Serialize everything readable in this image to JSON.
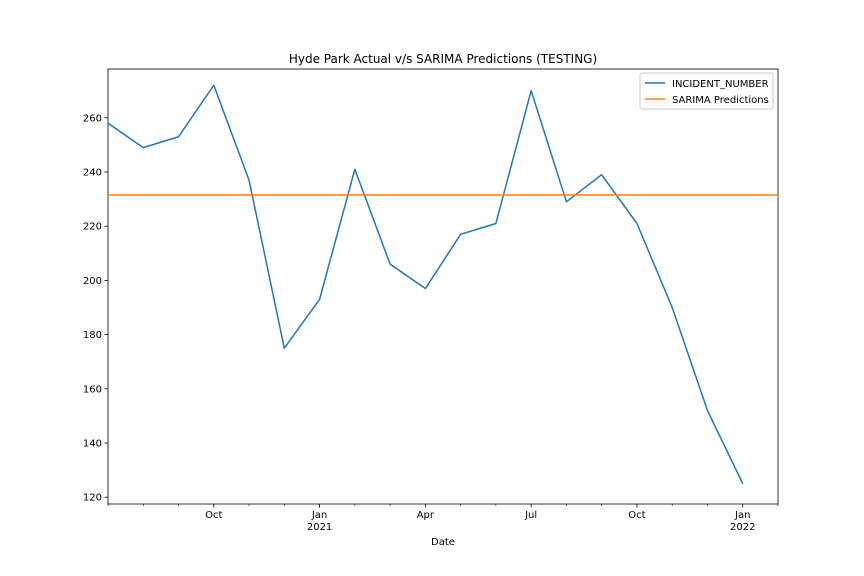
{
  "chart_data": {
    "type": "line",
    "title": "Hyde Park Actual v/s SARIMA Predictions (TESTING)",
    "xlabel": "Date",
    "ylabel": "",
    "x": [
      "2020-07",
      "2020-08",
      "2020-09",
      "2020-10",
      "2020-11",
      "2020-12",
      "2021-01",
      "2021-02",
      "2021-03",
      "2021-04",
      "2021-05",
      "2021-06",
      "2021-07",
      "2021-08",
      "2021-09",
      "2021-10",
      "2021-11",
      "2021-12",
      "2022-01",
      "2022-02"
    ],
    "xlim": [
      "2020-07",
      "2022-02"
    ],
    "ylim": [
      117.5,
      278
    ],
    "yticks": [
      120,
      140,
      160,
      180,
      200,
      220,
      240,
      260
    ],
    "xticks": [
      {
        "date": "2020-10",
        "label": "Oct",
        "sublabel": ""
      },
      {
        "date": "2021-01",
        "label": "Jan",
        "sublabel": "2021"
      },
      {
        "date": "2021-04",
        "label": "Apr",
        "sublabel": ""
      },
      {
        "date": "2021-07",
        "label": "Jul",
        "sublabel": ""
      },
      {
        "date": "2021-10",
        "label": "Oct",
        "sublabel": ""
      },
      {
        "date": "2022-01",
        "label": "Jan",
        "sublabel": "2022"
      }
    ],
    "series": [
      {
        "name": "INCIDENT_NUMBER",
        "color": "#1f77b4",
        "values": [
          258,
          249,
          253,
          272,
          237,
          175,
          193,
          241,
          206,
          197,
          217,
          221,
          270,
          229,
          239,
          221,
          190,
          152,
          125,
          null
        ]
      },
      {
        "name": "SARIMA Predictions",
        "color": "#ff7f0e",
        "constant": 231.5
      }
    ],
    "legend": "top-right",
    "grid": false
  }
}
